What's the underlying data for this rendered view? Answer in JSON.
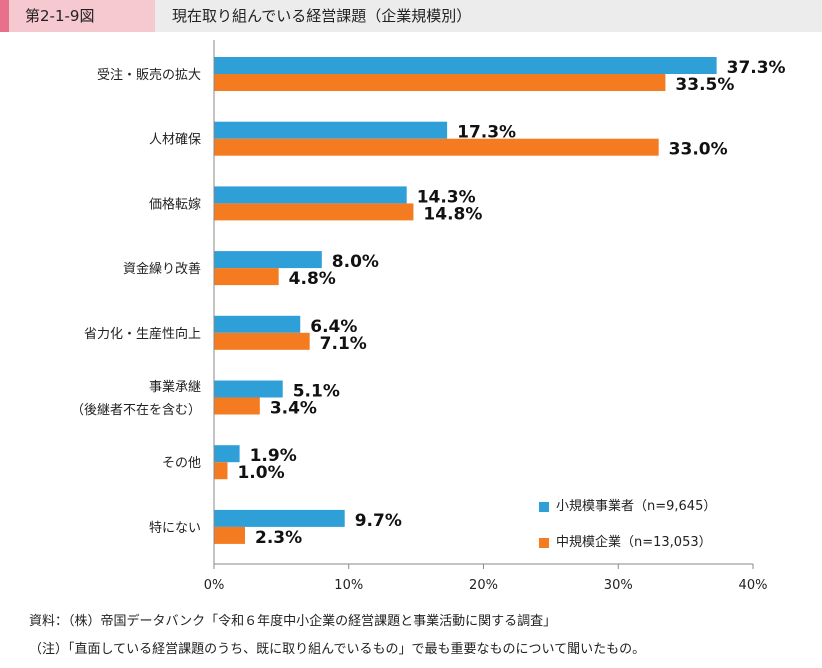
{
  "header": {
    "figure_number": "第2-1-9図",
    "title": "現在取り組んでいる経営課題（企業規模別）"
  },
  "colors": {
    "series_small": "#2f9fd8",
    "series_medium": "#f47b20",
    "header_bg": "#ececec",
    "header_accent": "#e8708a",
    "figure_box": "#f6c8cf"
  },
  "chart_data": {
    "type": "bar",
    "orientation": "horizontal",
    "categories": [
      [
        "受注・販売の拡大"
      ],
      [
        "人材確保"
      ],
      [
        "価格転嫁"
      ],
      [
        "資金繰り改善"
      ],
      [
        "省力化・生産性向上"
      ],
      [
        "事業承継",
        "（後継者不在を含む）"
      ],
      [
        "その他"
      ],
      [
        "特にない"
      ]
    ],
    "series": [
      {
        "name": "小規模事業者（n=9,645）",
        "color": "#2f9fd8",
        "values": [
          37.3,
          17.3,
          14.3,
          8.0,
          6.4,
          5.1,
          1.9,
          9.7
        ]
      },
      {
        "name": "中規模企業（n=13,053）",
        "color": "#f47b20",
        "values": [
          33.5,
          33.0,
          14.8,
          4.8,
          7.1,
          3.4,
          1.0,
          2.3
        ]
      }
    ],
    "value_labels": [
      [
        "37.3%",
        "17.3%",
        "14.3%",
        "8.0%",
        "6.4%",
        "5.1%",
        "1.9%",
        "9.7%"
      ],
      [
        "33.5%",
        "33.0%",
        "14.8%",
        "4.8%",
        "7.1%",
        "3.4%",
        "1.0%",
        "2.3%"
      ]
    ],
    "xlim": [
      0,
      40
    ],
    "xticks": [
      0,
      10,
      20,
      30,
      40
    ],
    "xtick_labels": [
      "0%",
      "10%",
      "20%",
      "30%",
      "40%"
    ],
    "grid": false,
    "legend_position": "bottom-right"
  },
  "legend": {
    "items": [
      {
        "label": "小規模事業者（n=9,645）",
        "color": "#2f9fd8"
      },
      {
        "label": "中規模企業（n=13,053）",
        "color": "#f47b20"
      }
    ]
  },
  "notes": {
    "source": "資料：（株）帝国データバンク「令和６年度中小企業の経営課題と事業活動に関する調査」",
    "note": "（注）「直面している経営課題のうち、既に取り組んでいるもの」で最も重要なものについて聞いたもの。"
  }
}
